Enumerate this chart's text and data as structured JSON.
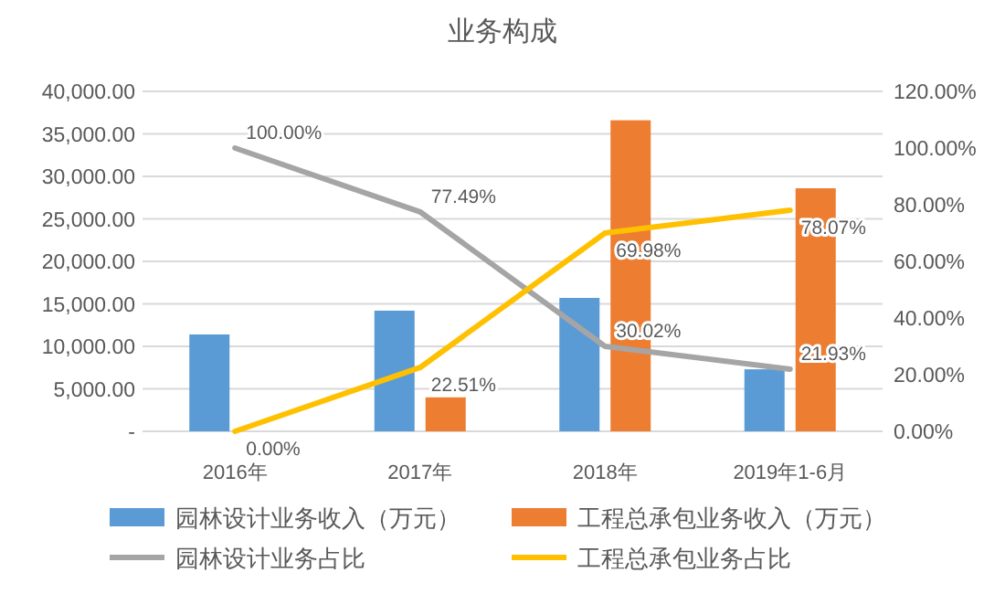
{
  "chart_data": {
    "type": "bar",
    "title": "业务构成",
    "categories": [
      "2016年",
      "2017年",
      "2018年",
      "2019年1-6月"
    ],
    "series": [
      {
        "name": "园林设计业务收入（万元）",
        "color": "#5b9bd5",
        "values": [
          11400,
          14200,
          15700,
          7300
        ]
      },
      {
        "name": "工程总承包业务收入（万元）",
        "color": "#ed7d31",
        "values": [
          null,
          4000,
          36600,
          28600
        ]
      },
      {
        "name": "园林设计业务占比",
        "type": "line",
        "axis": "y2",
        "color": "#a5a5a5",
        "values": [
          100,
          77.49,
          30.02,
          21.93
        ],
        "value_labels": [
          "100.00%",
          "77.49%",
          "30.02%",
          "21.93%"
        ]
      },
      {
        "name": "工程总承包业务占比",
        "type": "line",
        "axis": "y2",
        "color": "#ffc000",
        "values": [
          0,
          22.51,
          69.98,
          78.07
        ],
        "value_labels": [
          "0.00%",
          "22.51%",
          "69.98%",
          "78.07%"
        ]
      }
    ],
    "ylim": [
      0,
      40000
    ],
    "yticks": [
      {
        "value": 0,
        "label": "-"
      },
      {
        "value": 5000,
        "label": "5,000.00"
      },
      {
        "value": 10000,
        "label": "10,000.00"
      },
      {
        "value": 15000,
        "label": "15,000.00"
      },
      {
        "value": 20000,
        "label": "20,000.00"
      },
      {
        "value": 25000,
        "label": "25,000.00"
      },
      {
        "value": 30000,
        "label": "30,000.00"
      },
      {
        "value": 35000,
        "label": "35,000.00"
      },
      {
        "value": 40000,
        "label": "40,000.00"
      }
    ],
    "y2lim": [
      0,
      120
    ],
    "y2ticks": [
      {
        "value": 0,
        "label": "0.00%"
      },
      {
        "value": 20,
        "label": "20.00%"
      },
      {
        "value": 40,
        "label": "40.00%"
      },
      {
        "value": 60,
        "label": "60.00%"
      },
      {
        "value": 80,
        "label": "80.00%"
      },
      {
        "value": 100,
        "label": "100.00%"
      },
      {
        "value": 120,
        "label": "120.00%"
      }
    ],
    "grid": "y",
    "legend": "bottom"
  }
}
